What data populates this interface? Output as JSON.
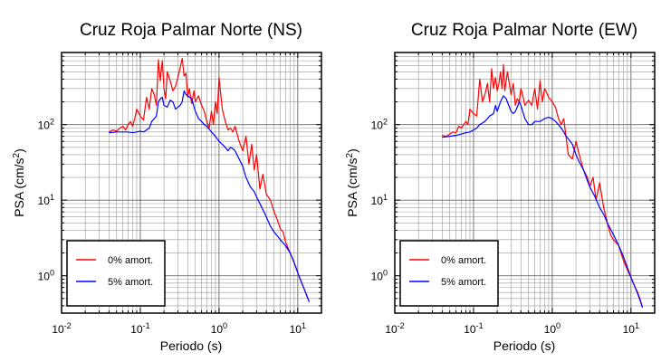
{
  "chart_data": [
    {
      "type": "line",
      "title": "Cruz Roja Palmar Norte (NS)",
      "xlabel": "Periodo (s)",
      "ylabel_main": "PSA (cm/s",
      "ylabel_sup": "2",
      "ylabel_tail": ")",
      "xscale": "log",
      "yscale": "log",
      "xlim": [
        0.01,
        20
      ],
      "ylim": [
        0.32,
        900
      ],
      "xticks": [
        {
          "value": 0.01,
          "base": "10",
          "exp": "-2"
        },
        {
          "value": 0.1,
          "base": "10",
          "exp": "-1"
        },
        {
          "value": 1,
          "base": "10",
          "exp": "0"
        },
        {
          "value": 10,
          "base": "10",
          "exp": "1"
        }
      ],
      "yticks": [
        {
          "value": 1,
          "base": "10",
          "exp": "0"
        },
        {
          "value": 10,
          "base": "10",
          "exp": "1"
        },
        {
          "value": 100,
          "base": "10",
          "exp": "2"
        }
      ],
      "grid": true,
      "legend_position": "bottom-left",
      "series": [
        {
          "name": "0% amort.",
          "color": "#ff0000",
          "x": [
            0.04,
            0.045,
            0.05,
            0.055,
            0.06,
            0.065,
            0.07,
            0.075,
            0.08,
            0.085,
            0.09,
            0.1,
            0.11,
            0.12,
            0.13,
            0.14,
            0.15,
            0.16,
            0.17,
            0.18,
            0.19,
            0.2,
            0.21,
            0.22,
            0.24,
            0.26,
            0.28,
            0.3,
            0.32,
            0.34,
            0.36,
            0.38,
            0.4,
            0.42,
            0.45,
            0.48,
            0.5,
            0.55,
            0.6,
            0.65,
            0.7,
            0.75,
            0.8,
            0.85,
            0.9,
            0.95,
            1.0,
            1.1,
            1.2,
            1.3,
            1.4,
            1.5,
            1.6,
            1.8,
            2.0,
            2.2,
            2.4,
            2.6,
            2.8,
            3.0,
            3.3,
            3.6,
            4.0,
            4.5,
            5.0,
            5.5,
            6.0,
            6.5,
            7.0,
            8.0,
            9.0,
            10,
            11,
            12,
            13,
            14
          ],
          "y": [
            80,
            85,
            82,
            90,
            95,
            85,
            100,
            110,
            95,
            120,
            160,
            130,
            115,
            230,
            160,
            300,
            250,
            180,
            720,
            380,
            700,
            300,
            220,
            500,
            380,
            280,
            320,
            420,
            560,
            750,
            440,
            480,
            230,
            300,
            190,
            280,
            200,
            240,
            180,
            150,
            110,
            90,
            150,
            100,
            200,
            140,
            420,
            160,
            110,
            85,
            90,
            80,
            95,
            60,
            45,
            70,
            30,
            55,
            25,
            40,
            14,
            22,
            12,
            10,
            7,
            5.5,
            4.2,
            3.8,
            2.8,
            2.0,
            1.5,
            1.1,
            0.85,
            0.68,
            0.55,
            0.45
          ]
        },
        {
          "name": "5% amort.",
          "color": "#0000ff",
          "x": [
            0.04,
            0.05,
            0.06,
            0.07,
            0.08,
            0.09,
            0.1,
            0.11,
            0.12,
            0.13,
            0.14,
            0.15,
            0.16,
            0.17,
            0.18,
            0.19,
            0.2,
            0.22,
            0.24,
            0.26,
            0.28,
            0.3,
            0.32,
            0.34,
            0.36,
            0.38,
            0.4,
            0.45,
            0.5,
            0.55,
            0.6,
            0.65,
            0.7,
            0.8,
            0.9,
            1.0,
            1.1,
            1.2,
            1.3,
            1.4,
            1.5,
            1.6,
            1.8,
            2.0,
            2.2,
            2.5,
            2.8,
            3.0,
            3.5,
            4.0,
            4.5,
            5.0,
            6.0,
            7.0,
            8.0,
            9.0,
            10,
            11,
            12,
            13,
            14
          ],
          "y": [
            78,
            80,
            80,
            80,
            78,
            80,
            82,
            80,
            85,
            90,
            110,
            120,
            130,
            200,
            220,
            230,
            180,
            170,
            210,
            200,
            160,
            170,
            180,
            200,
            280,
            250,
            240,
            220,
            150,
            120,
            110,
            100,
            95,
            80,
            70,
            60,
            55,
            50,
            45,
            50,
            48,
            45,
            35,
            28,
            20,
            15,
            13,
            11,
            8,
            6,
            4.5,
            3.8,
            3.0,
            2.5,
            2.0,
            1.5,
            1.1,
            0.85,
            0.68,
            0.55,
            0.45
          ]
        }
      ]
    },
    {
      "type": "line",
      "title": "Cruz Roja Palmar Norte (EW)",
      "xlabel": "Periodo (s)",
      "ylabel_main": "PSA (cm/s",
      "ylabel_sup": "2",
      "ylabel_tail": ")",
      "xscale": "log",
      "yscale": "log",
      "xlim": [
        0.01,
        20
      ],
      "ylim": [
        0.32,
        900
      ],
      "xticks": [
        {
          "value": 0.01,
          "base": "10",
          "exp": "-2"
        },
        {
          "value": 0.1,
          "base": "10",
          "exp": "-1"
        },
        {
          "value": 1,
          "base": "10",
          "exp": "0"
        },
        {
          "value": 10,
          "base": "10",
          "exp": "1"
        }
      ],
      "yticks": [
        {
          "value": 1,
          "base": "10",
          "exp": "0"
        },
        {
          "value": 10,
          "base": "10",
          "exp": "1"
        },
        {
          "value": 100,
          "base": "10",
          "exp": "2"
        }
      ],
      "grid": true,
      "legend_position": "bottom-left",
      "series": [
        {
          "name": "0% amort.",
          "color": "#ff0000",
          "x": [
            0.04,
            0.045,
            0.05,
            0.055,
            0.06,
            0.065,
            0.07,
            0.075,
            0.08,
            0.085,
            0.09,
            0.1,
            0.11,
            0.12,
            0.13,
            0.14,
            0.15,
            0.16,
            0.17,
            0.18,
            0.19,
            0.2,
            0.21,
            0.22,
            0.23,
            0.24,
            0.25,
            0.27,
            0.3,
            0.32,
            0.34,
            0.36,
            0.38,
            0.4,
            0.42,
            0.45,
            0.5,
            0.55,
            0.6,
            0.65,
            0.7,
            0.75,
            0.8,
            0.9,
            1.0,
            1.1,
            1.2,
            1.3,
            1.4,
            1.6,
            1.8,
            2.0,
            2.2,
            2.5,
            2.8,
            3.0,
            3.3,
            3.6,
            4.0,
            4.5,
            5.0,
            5.5,
            6.0,
            7.0,
            8.0,
            9.0,
            10,
            11,
            12,
            13,
            14
          ],
          "y": [
            72,
            70,
            75,
            80,
            78,
            95,
            90,
            100,
            110,
            100,
            160,
            140,
            130,
            400,
            200,
            250,
            350,
            200,
            550,
            300,
            420,
            280,
            350,
            500,
            300,
            620,
            280,
            500,
            250,
            350,
            180,
            220,
            200,
            300,
            250,
            180,
            210,
            180,
            300,
            160,
            380,
            200,
            300,
            230,
            200,
            170,
            120,
            100,
            120,
            40,
            35,
            60,
            40,
            25,
            20,
            15,
            20,
            10,
            17,
            8,
            5,
            3.5,
            3.0,
            2.5,
            1.6,
            1.2,
            0.95,
            0.75,
            0.62,
            0.5,
            0.38
          ]
        },
        {
          "name": "5% amort.",
          "color": "#0000ff",
          "x": [
            0.04,
            0.05,
            0.06,
            0.07,
            0.08,
            0.09,
            0.1,
            0.11,
            0.12,
            0.13,
            0.14,
            0.15,
            0.16,
            0.17,
            0.18,
            0.19,
            0.2,
            0.22,
            0.24,
            0.26,
            0.28,
            0.3,
            0.32,
            0.34,
            0.36,
            0.38,
            0.4,
            0.45,
            0.5,
            0.55,
            0.6,
            0.7,
            0.8,
            0.9,
            1.0,
            1.1,
            1.2,
            1.3,
            1.4,
            1.5,
            1.6,
            1.8,
            2.0,
            2.2,
            2.5,
            2.8,
            3.0,
            3.5,
            4.0,
            4.5,
            5.0,
            6.0,
            7.0,
            8.0,
            9.0,
            10,
            11,
            12,
            13,
            14
          ],
          "y": [
            68,
            70,
            72,
            75,
            78,
            80,
            85,
            90,
            100,
            105,
            110,
            120,
            130,
            135,
            140,
            180,
            150,
            200,
            240,
            220,
            180,
            150,
            140,
            150,
            170,
            200,
            180,
            120,
            100,
            100,
            110,
            110,
            120,
            125,
            120,
            110,
            100,
            90,
            80,
            70,
            65,
            55,
            40,
            32,
            25,
            18,
            15,
            11,
            8,
            6.5,
            5.0,
            3.5,
            2.5,
            1.8,
            1.3,
            0.95,
            0.75,
            0.6,
            0.48,
            0.38
          ]
        }
      ]
    }
  ]
}
